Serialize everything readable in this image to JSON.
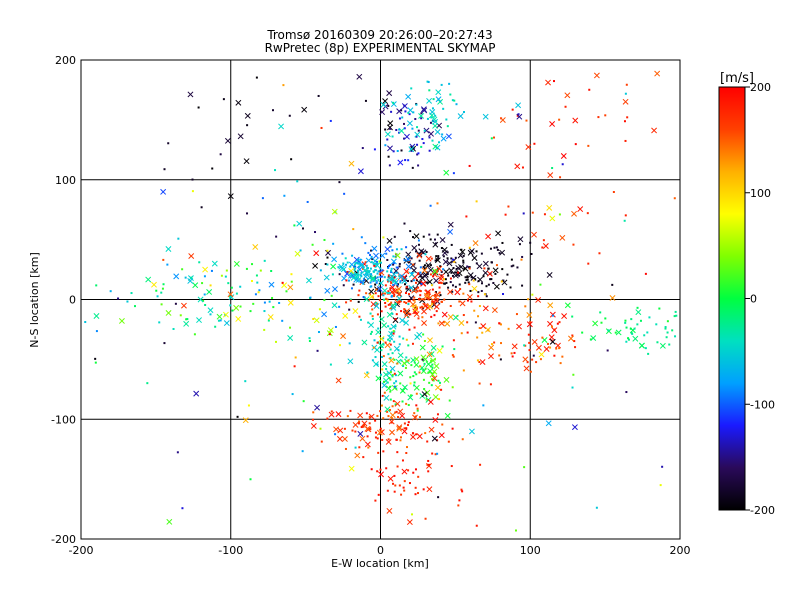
{
  "chart_data": {
    "type": "scatter",
    "title": "Tromsø 20160309 20:26:00–20:27:43",
    "subtitle": "RwPretec (8p) EXPERIMENTAL SKYMAP",
    "xlabel": "E-W location [km]",
    "ylabel": "N-S location [km]",
    "xlim": [
      -200,
      200
    ],
    "ylim": [
      -200,
      200
    ],
    "xticks": [
      "-200",
      "-100",
      "0",
      "100",
      "200"
    ],
    "yticks": [
      "-200",
      "-100",
      "0",
      "100",
      "200"
    ],
    "grid": true,
    "colorbar": {
      "label": "[m/s]",
      "range": [
        -200,
        200
      ],
      "ticks": [
        "200",
        "100",
        "0",
        "-100",
        "-200"
      ],
      "colormap": [
        "#000000",
        "#2a0a5a",
        "#1a1aff",
        "#00a0ff",
        "#00e0c0",
        "#00ff40",
        "#80ff00",
        "#ffff00",
        "#ffb000",
        "#ff4000",
        "#ff0000"
      ]
    },
    "markers": [
      "dot",
      "x"
    ],
    "clusters": [
      {
        "cx": 20,
        "cy": 25,
        "sx": 28,
        "sy": 15,
        "n": 120,
        "vmin": -200,
        "vmax": -170
      },
      {
        "cx": 60,
        "cy": 25,
        "sx": 18,
        "sy": 12,
        "n": 110,
        "vmin": -200,
        "vmax": -180
      },
      {
        "cx": 15,
        "cy": 145,
        "sx": 14,
        "sy": 18,
        "n": 60,
        "vmin": -200,
        "vmax": -120
      },
      {
        "cx": 35,
        "cy": 150,
        "sx": 18,
        "sy": 18,
        "n": 60,
        "vmin": -80,
        "vmax": -20
      },
      {
        "cx": 20,
        "cy": 5,
        "sx": 18,
        "sy": 12,
        "n": 150,
        "vmin": 150,
        "vmax": 200
      },
      {
        "cx": 0,
        "cy": 25,
        "sx": 14,
        "sy": 10,
        "n": 110,
        "vmin": -110,
        "vmax": -50
      },
      {
        "cx": -15,
        "cy": 25,
        "sx": 10,
        "sy": 4,
        "n": 60,
        "vmin": -60,
        "vmax": -40
      },
      {
        "cx": 5,
        "cy": -30,
        "sx": 8,
        "sy": 22,
        "n": 90,
        "vmin": -60,
        "vmax": -20
      },
      {
        "cx": 25,
        "cy": -65,
        "sx": 12,
        "sy": 14,
        "n": 80,
        "vmin": -20,
        "vmax": 40
      },
      {
        "cx": 0,
        "cy": -105,
        "sx": 22,
        "sy": 12,
        "n": 110,
        "vmin": 140,
        "vmax": 200
      },
      {
        "cx": 20,
        "cy": -150,
        "sx": 18,
        "sy": 14,
        "n": 50,
        "vmin": 160,
        "vmax": 200
      },
      {
        "cx": 170,
        "cy": -25,
        "sx": 20,
        "sy": 8,
        "n": 60,
        "vmin": -40,
        "vmax": 10
      },
      {
        "cx": 110,
        "cy": -30,
        "sx": 15,
        "sy": 15,
        "n": 40,
        "vmin": 140,
        "vmax": 200
      },
      {
        "cx": 120,
        "cy": 120,
        "sx": 30,
        "sy": 40,
        "n": 50,
        "vmin": 150,
        "vmax": 200
      },
      {
        "cx": -130,
        "cy": 0,
        "sx": 35,
        "sy": 15,
        "n": 60,
        "vmin": -90,
        "vmax": 40
      },
      {
        "cx": -80,
        "cy": 130,
        "sx": 30,
        "sy": 30,
        "n": 25,
        "vmin": -200,
        "vmax": -170
      },
      {
        "cx": -50,
        "cy": 5,
        "sx": 35,
        "sy": 25,
        "n": 80,
        "vmin": -100,
        "vmax": 100
      },
      {
        "cx": 40,
        "cy": -20,
        "sx": 40,
        "sy": 30,
        "n": 120,
        "vmin": 100,
        "vmax": 200
      },
      {
        "cx": 0,
        "cy": 0,
        "sx": 110,
        "sy": 110,
        "n": 180,
        "vmin": -200,
        "vmax": 200
      }
    ]
  }
}
